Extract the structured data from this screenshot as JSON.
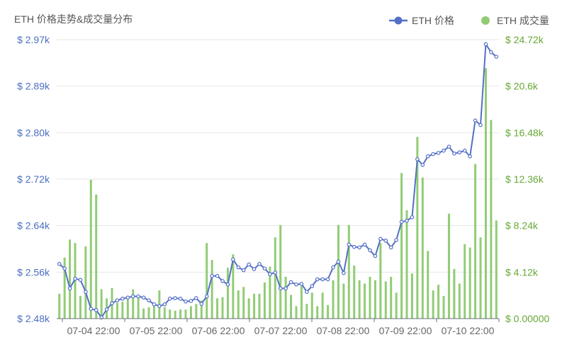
{
  "chart_data": {
    "type": "bar+line",
    "title": "ETH 价格走势&成交量分布",
    "legend": {
      "position": "top-right",
      "items": [
        {
          "name": "ETH 价格",
          "color": "#5470c6",
          "shape": "line-circle"
        },
        {
          "name": "ETH 成交量",
          "color": "#91cc75",
          "shape": "circle"
        }
      ]
    },
    "x_ticks": [
      "07-04 22:00",
      "07-05 22:00",
      "07-06 22:00",
      "07-07 22:00",
      "07-08 22:00",
      "07-09 22:00",
      "07-10 22:00"
    ],
    "y_left": {
      "ticks": [
        "$ 2.48k",
        "$ 2.56k",
        "$ 2.64k",
        "$ 2.72k",
        "$ 2.80k",
        "$ 2.89k",
        "$ 2.97k"
      ],
      "min": 2480,
      "max": 2970,
      "unit": "USD"
    },
    "y_right": {
      "ticks": [
        "$ 0.00000",
        "$ 4.12k",
        "$ 8.24k",
        "$ 12.36k",
        "$ 16.48k",
        "$ 20.6k",
        "$ 24.72k"
      ],
      "min": 0,
      "max": 24720,
      "unit": "USD"
    },
    "grid": true,
    "series": [
      {
        "name": "ETH 价格",
        "type": "line",
        "color": "#5470c6",
        "values": [
          2576,
          2568,
          2533,
          2550,
          2548,
          2527,
          2497,
          2495,
          2482,
          2496,
          2507,
          2512,
          2515,
          2517,
          2519,
          2519,
          2517,
          2512,
          2505,
          2502,
          2505,
          2515,
          2516,
          2515,
          2510,
          2511,
          2516,
          2506,
          2519,
          2555,
          2555,
          2546,
          2540,
          2584,
          2570,
          2565,
          2575,
          2567,
          2576,
          2568,
          2558,
          2561,
          2533,
          2533,
          2544,
          2540,
          2541,
          2527,
          2537,
          2549,
          2549,
          2549,
          2570,
          2580,
          2560,
          2610,
          2606,
          2605,
          2610,
          2600,
          2590,
          2620,
          2617,
          2605,
          2618,
          2650,
          2652,
          2658,
          2760,
          2750,
          2765,
          2769,
          2771,
          2775,
          2782,
          2770,
          2772,
          2775,
          2765,
          2828,
          2820,
          2962,
          2948,
          2940
        ]
      },
      {
        "name": "ETH 成交量",
        "type": "bar",
        "color": "#91cc75",
        "values": [
          2200,
          5400,
          7000,
          6700,
          2000,
          6400,
          12300,
          11000,
          2600,
          1800,
          2700,
          1400,
          1500,
          1700,
          2600,
          1900,
          900,
          1000,
          1200,
          2500,
          1000,
          800,
          700,
          800,
          800,
          1100,
          1300,
          1600,
          6700,
          5200,
          1800,
          1900,
          4500,
          5700,
          2500,
          2800,
          1800,
          2200,
          2200,
          3200,
          4600,
          7200,
          8300,
          3700,
          2100,
          1100,
          2900,
          1300,
          2300,
          1100,
          2300,
          1200,
          3400,
          8300,
          3100,
          8300,
          4700,
          3400,
          3100,
          3700,
          3400,
          6700,
          3300,
          3700,
          2300,
          12900,
          9600,
          4000,
          16100,
          12500,
          6000,
          2500,
          3000,
          2000,
          9300,
          4400,
          3100,
          6600,
          6300,
          13700,
          7200,
          22200,
          17600,
          8700
        ]
      }
    ]
  }
}
